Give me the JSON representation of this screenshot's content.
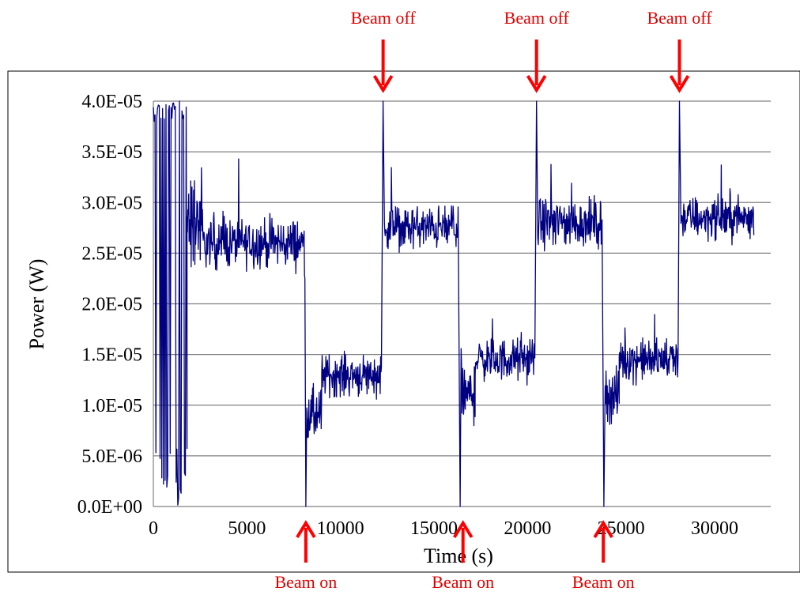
{
  "chart_data": {
    "type": "line",
    "title": "",
    "xlabel": "Time (s)",
    "ylabel": "Power (W)",
    "xlim": [
      0,
      33000
    ],
    "ylim": [
      0,
      4e-05
    ],
    "grid": "horizontal",
    "xticks": [
      0,
      5000,
      10000,
      15000,
      20000,
      25000,
      30000
    ],
    "xtick_labels": [
      "0",
      "5000",
      "10000",
      "15000",
      "20000",
      "25000",
      "30000"
    ],
    "yticks": [
      0,
      5e-06,
      1e-05,
      1.5e-05,
      2e-05,
      2.5e-05,
      3e-05,
      3.5e-05,
      4e-05
    ],
    "ytick_labels": [
      "0.0E+00",
      "5.0E-06",
      "1.0E-05",
      "1.5E-05",
      "2.0E-05",
      "2.5E-05",
      "3.0E-05",
      "3.5E-05",
      "4.0E-05"
    ],
    "series": [
      {
        "color": "#000080",
        "segments": [
          {
            "x_start": 0,
            "x_end": 1800,
            "mean": 2e-05,
            "noise": 2e-05,
            "note_kind": "startup"
          },
          {
            "x_start": 1800,
            "x_end": 2600,
            "mean": 2.8e-05,
            "noise": 7e-06
          },
          {
            "x_start": 2600,
            "x_end": 8100,
            "mean": 2.6e-05,
            "noise": 3.5e-06
          },
          {
            "x_start": 8200,
            "x_end": 9000,
            "mean": 9e-06,
            "noise": 4e-06
          },
          {
            "x_start": 9000,
            "x_end": 12200,
            "mean": 1.3e-05,
            "noise": 3e-06
          },
          {
            "x_start": 12350,
            "x_end": 16300,
            "mean": 2.75e-05,
            "noise": 3e-06
          },
          {
            "x_start": 16450,
            "x_end": 17200,
            "mean": 1.1e-05,
            "noise": 4e-06
          },
          {
            "x_start": 17200,
            "x_end": 20400,
            "mean": 1.45e-05,
            "noise": 3e-06
          },
          {
            "x_start": 20550,
            "x_end": 24000,
            "mean": 2.8e-05,
            "noise": 3.5e-06
          },
          {
            "x_start": 24150,
            "x_end": 24900,
            "mean": 1.1e-05,
            "noise": 4e-06
          },
          {
            "x_start": 24900,
            "x_end": 28050,
            "mean": 1.45e-05,
            "noise": 3e-06
          },
          {
            "x_start": 28200,
            "x_end": 32100,
            "mean": 2.85e-05,
            "noise": 3e-06
          }
        ],
        "spikes": [
          {
            "x": 8150,
            "y": 0
          },
          {
            "x": 12280,
            "y": 4e-05
          },
          {
            "x": 16400,
            "y": 0
          },
          {
            "x": 20480,
            "y": 4e-05
          },
          {
            "x": 24080,
            "y": 0
          },
          {
            "x": 28120,
            "y": 4e-05
          }
        ]
      }
    ],
    "annotations": [
      {
        "text": "Beam off",
        "x": 12280,
        "position": "top"
      },
      {
        "text": "Beam off",
        "x": 20480,
        "position": "top"
      },
      {
        "text": "Beam off",
        "x": 28120,
        "position": "top"
      },
      {
        "text": "Beam on",
        "x": 8150,
        "position": "bottom"
      },
      {
        "text": "Beam on",
        "x": 16550,
        "position": "bottom"
      },
      {
        "text": "Beam on",
        "x": 24050,
        "position": "bottom"
      }
    ],
    "annotation_color": "#ff0000"
  }
}
